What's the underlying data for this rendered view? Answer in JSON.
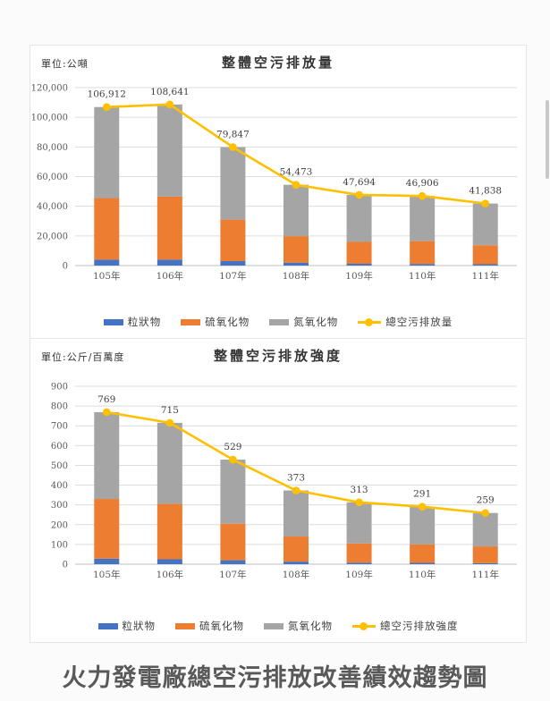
{
  "footer": {
    "main_title": "火力發電廠總空污排放改善績效趨勢圖"
  },
  "chart_data": [
    {
      "type": "bar",
      "subtype": "stacked-bar-with-line",
      "title": "整體空污排放量",
      "unit_label": "單位:公噸",
      "categories": [
        "105年",
        "106年",
        "107年",
        "108年",
        "109年",
        "110年",
        "111年"
      ],
      "series": [
        {
          "name": "粒狀物",
          "color": "#4472C4",
          "values": [
            4000,
            4000,
            3000,
            2000,
            1200,
            1100,
            900
          ]
        },
        {
          "name": "硫氧化物",
          "color": "#ED7D31",
          "values": [
            41500,
            42500,
            28000,
            17800,
            14800,
            15400,
            12800
          ]
        },
        {
          "name": "氮氧化物",
          "color": "#A5A5A5",
          "values": [
            61412,
            62141,
            48847,
            34673,
            31694,
            30406,
            28138
          ]
        }
      ],
      "line_series": {
        "name": "總空污排放量",
        "color": "#FFC000",
        "values": [
          106912,
          108641,
          79847,
          54473,
          47694,
          46906,
          41838
        ]
      },
      "point_labels": [
        "106,912",
        "108,641",
        "79,847",
        "54,473",
        "47,694",
        "46,906",
        "41,838"
      ],
      "ylim": [
        0,
        120000
      ],
      "y_tick_step": 20000,
      "grid": true,
      "legend_position": "bottom",
      "grid_color": "#DCDCDC",
      "zero_line_color": "#BFBFBF",
      "axis_text_color": "#595959",
      "label_text_color": "#404040"
    },
    {
      "type": "bar",
      "subtype": "stacked-bar-with-line",
      "title": "整體空污排放強度",
      "unit_label": "單位:公斤/百萬度",
      "categories": [
        "105年",
        "106年",
        "107年",
        "108年",
        "109年",
        "110年",
        "111年"
      ],
      "series": [
        {
          "name": "粒狀物",
          "color": "#4472C4",
          "values": [
            28,
            25,
            20,
            13,
            8,
            7,
            5
          ]
        },
        {
          "name": "硫氧化物",
          "color": "#ED7D31",
          "values": [
            302,
            280,
            185,
            127,
            97,
            93,
            85
          ]
        },
        {
          "name": "氮氧化物",
          "color": "#A5A5A5",
          "values": [
            439,
            410,
            324,
            233,
            208,
            191,
            169
          ]
        }
      ],
      "line_series": {
        "name": "總空污排放強度",
        "color": "#FFC000",
        "values": [
          769,
          715,
          529,
          373,
          313,
          291,
          259
        ]
      },
      "point_labels": [
        "769",
        "715",
        "529",
        "373",
        "313",
        "291",
        "259"
      ],
      "ylim": [
        0,
        900
      ],
      "y_tick_step": 100,
      "grid": true,
      "legend_position": "bottom",
      "grid_color": "#DCDCDC",
      "zero_line_color": "#BFBFBF",
      "axis_text_color": "#595959",
      "label_text_color": "#404040"
    }
  ]
}
